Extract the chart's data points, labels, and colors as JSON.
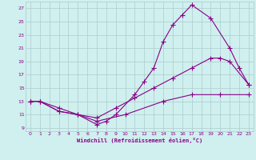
{
  "xlabel": "Windchill (Refroidissement éolien,°C)",
  "bg_color": "#cff0ee",
  "line_color": "#880088",
  "grid_color": "#aacccc",
  "xlim": [
    -0.5,
    23.5
  ],
  "ylim": [
    8.5,
    28
  ],
  "xticks": [
    0,
    1,
    2,
    3,
    4,
    5,
    6,
    7,
    8,
    9,
    10,
    11,
    12,
    13,
    14,
    15,
    16,
    17,
    18,
    19,
    20,
    21,
    22,
    23
  ],
  "yticks": [
    9,
    11,
    13,
    15,
    17,
    19,
    21,
    23,
    25,
    27
  ],
  "line1_x": [
    0,
    1,
    3,
    5,
    7,
    10,
    14,
    17,
    20,
    23
  ],
  "line1_y": [
    13,
    13,
    12,
    11,
    10,
    11,
    13,
    14,
    14,
    14
  ],
  "line2_x": [
    0,
    1,
    3,
    5,
    7,
    9,
    11,
    13,
    15,
    17,
    19,
    20,
    21,
    23
  ],
  "line2_y": [
    13,
    13,
    11.5,
    11,
    10.5,
    12,
    13.5,
    15,
    16.5,
    18,
    19.5,
    19.5,
    19,
    15.5
  ],
  "line3_x": [
    0,
    1,
    3,
    5,
    7,
    8,
    9,
    11,
    12,
    13,
    14,
    15,
    16,
    17,
    19,
    21,
    22,
    23
  ],
  "line3_y": [
    13,
    13,
    11.5,
    11,
    9.5,
    10,
    11,
    14,
    16,
    18,
    22,
    24.5,
    26,
    27.5,
    25.5,
    21,
    18,
    15.5
  ]
}
